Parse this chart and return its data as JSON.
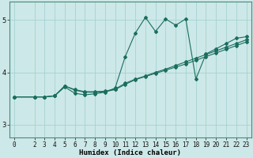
{
  "title": "",
  "xlabel": "Humidex (Indice chaleur)",
  "ylabel": "",
  "bg_color": "#cde8e8",
  "line_color": "#1a6e5e",
  "grid_color": "#9ecece",
  "xlim": [
    -0.5,
    23.5
  ],
  "ylim": [
    2.75,
    5.35
  ],
  "xticks": [
    0,
    2,
    3,
    4,
    5,
    6,
    7,
    8,
    9,
    10,
    11,
    12,
    13,
    14,
    15,
    16,
    17,
    18,
    19,
    20,
    21,
    22,
    23
  ],
  "yticks": [
    3,
    4,
    5
  ],
  "tick_fontsize": 5.5,
  "label_fontsize": 6.5,
  "curve_wiggly_x": [
    0,
    2,
    3,
    4,
    5,
    6,
    7,
    8,
    9,
    10,
    11,
    12,
    13,
    14,
    15,
    16,
    17,
    18,
    19,
    20,
    21,
    22,
    23
  ],
  "curve_wiggly_y": [
    3.53,
    3.53,
    3.53,
    3.55,
    3.72,
    3.6,
    3.57,
    3.59,
    3.62,
    3.7,
    4.3,
    4.75,
    5.05,
    4.78,
    5.02,
    4.9,
    5.02,
    3.87,
    4.35,
    4.45,
    4.55,
    4.65,
    4.68
  ],
  "curve_diag1_x": [
    0,
    2,
    3,
    4,
    5,
    6,
    7,
    8,
    9,
    10,
    11,
    12,
    13,
    14,
    15,
    16,
    17,
    18,
    19,
    20,
    21,
    22,
    23
  ],
  "curve_diag1_y": [
    3.53,
    3.53,
    3.53,
    3.55,
    3.74,
    3.67,
    3.63,
    3.63,
    3.64,
    3.68,
    3.79,
    3.87,
    3.93,
    4.0,
    4.06,
    4.13,
    4.2,
    4.27,
    4.34,
    4.41,
    4.48,
    4.55,
    4.62
  ],
  "curve_diag2_x": [
    0,
    2,
    3,
    4,
    5,
    6,
    7,
    8,
    9,
    10,
    11,
    12,
    13,
    14,
    15,
    16,
    17,
    18,
    19,
    20,
    21,
    22,
    23
  ],
  "curve_diag2_y": [
    3.53,
    3.53,
    3.53,
    3.55,
    3.74,
    3.66,
    3.62,
    3.62,
    3.63,
    3.67,
    3.77,
    3.86,
    3.92,
    3.98,
    4.04,
    4.1,
    4.16,
    4.23,
    4.3,
    4.37,
    4.44,
    4.51,
    4.58
  ]
}
